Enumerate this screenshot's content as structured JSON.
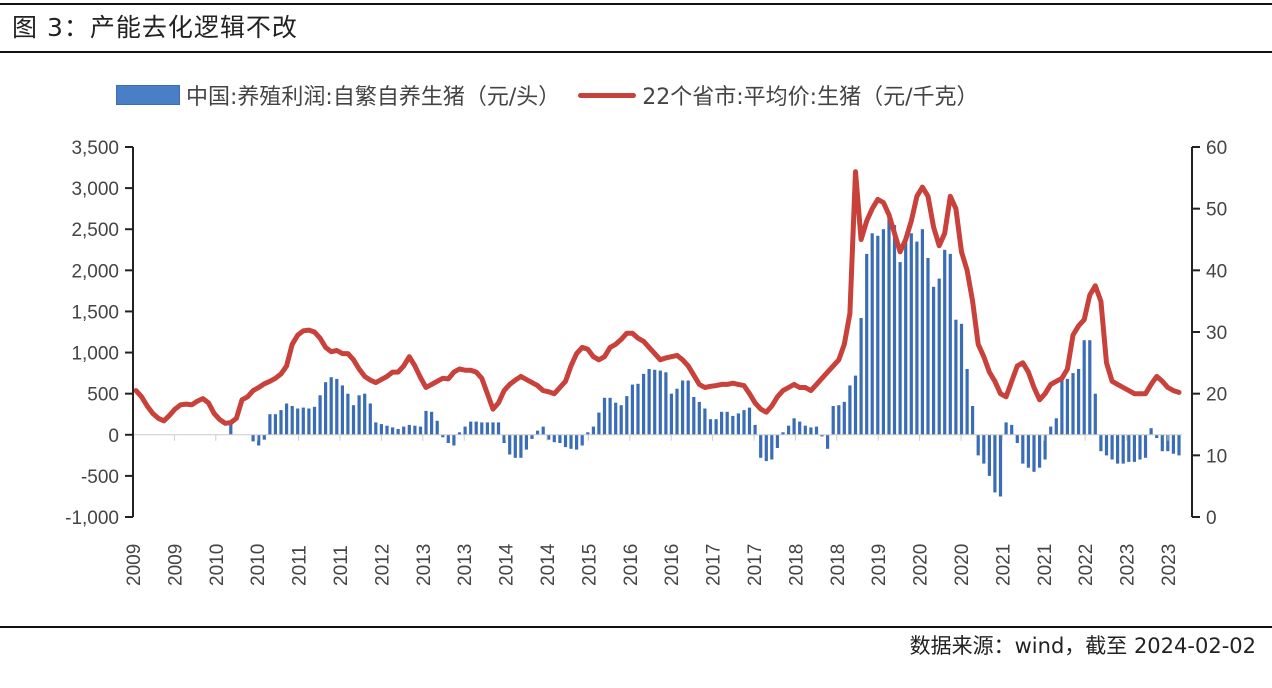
{
  "title": "图 3：产能去化逻辑不改",
  "source": "数据来源：wind，截至 2024-02-02",
  "colors": {
    "bar": "#3a6db5",
    "line": "#c8413a"
  },
  "chart_data": {
    "type": "bar+line",
    "title": "图 3：产能去化逻辑不改",
    "legend_position": "top",
    "series": [
      {
        "name": "中国:养殖利润:自繁自养生猪（元/头）",
        "type": "bar",
        "axis": "left"
      },
      {
        "name": "22个省市:平均价:生猪（元/千克）",
        "type": "line",
        "axis": "right"
      }
    ],
    "left_axis": {
      "ylim": [
        -1000,
        3500
      ],
      "ticks": [
        "3,500",
        "3,000",
        "2,500",
        "2,000",
        "1,500",
        "1,000",
        "500",
        "0",
        "-500",
        "-1,000"
      ]
    },
    "right_axis": {
      "ylim": [
        0,
        60
      ],
      "ticks": [
        "60",
        "50",
        "40",
        "30",
        "20",
        "10",
        "0"
      ]
    },
    "x_tick_labels": [
      "2009",
      "2009",
      "2010",
      "2010",
      "2011",
      "2011",
      "2012",
      "2013",
      "2013",
      "2014",
      "2014",
      "2015",
      "2016",
      "2016",
      "2017",
      "2017",
      "2018",
      "2018",
      "2019",
      "2020",
      "2020",
      "2021",
      "2021",
      "2022",
      "2023",
      "2023"
    ],
    "x_start": "2009-01",
    "x_end": "2024-01",
    "frequency": "monthly",
    "profit": [
      0,
      0,
      0,
      0,
      0,
      0,
      0,
      0,
      0,
      0,
      0,
      0,
      0,
      0,
      0,
      0,
      0,
      150,
      0,
      0,
      0,
      -80,
      -130,
      -60,
      250,
      250,
      300,
      380,
      350,
      320,
      330,
      320,
      340,
      480,
      640,
      700,
      680,
      600,
      500,
      360,
      480,
      500,
      380,
      150,
      130,
      110,
      90,
      70,
      100,
      120,
      110,
      100,
      290,
      280,
      170,
      -30,
      -100,
      -130,
      30,
      100,
      160,
      160,
      150,
      150,
      150,
      150,
      -100,
      -240,
      -280,
      -280,
      -180,
      -50,
      50,
      100,
      -60,
      -90,
      -100,
      -150,
      -170,
      -180,
      -130,
      30,
      100,
      270,
      450,
      450,
      390,
      360,
      470,
      610,
      620,
      740,
      800,
      790,
      780,
      760,
      500,
      560,
      660,
      660,
      460,
      400,
      320,
      190,
      190,
      280,
      280,
      230,
      260,
      300,
      330,
      120,
      -280,
      -320,
      -300,
      -160,
      30,
      110,
      200,
      160,
      110,
      90,
      100,
      -20,
      -170,
      350,
      360,
      400,
      600,
      720,
      1420,
      2200,
      2450,
      2420,
      2500,
      2700,
      2550,
      2100,
      2350,
      2450,
      2350,
      2500,
      2150,
      1800,
      1900,
      2250,
      2200,
      1400,
      1350,
      800,
      350,
      -250,
      -350,
      -500,
      -700,
      -750,
      150,
      120,
      -100,
      -350,
      -400,
      -450,
      -400,
      -300,
      100,
      200,
      700,
      680,
      750,
      800,
      1150,
      1150,
      500,
      -200,
      -250,
      -300,
      -350,
      -350,
      -330,
      -330,
      -300,
      -280,
      80,
      -40,
      -200,
      -200,
      -230,
      -250
    ],
    "price": [
      20.5,
      19.5,
      18,
      16.8,
      16,
      15.6,
      16.5,
      17.5,
      18.2,
      18.3,
      18.2,
      18.8,
      19.2,
      18.5,
      16.8,
      15.8,
      15.2,
      15.3,
      16,
      19,
      19.5,
      20.5,
      21,
      21.6,
      22,
      22.5,
      23.2,
      24.5,
      28,
      29.5,
      30.2,
      30.3,
      30,
      29,
      27.5,
      26.8,
      27,
      26.5,
      26.5,
      25.5,
      24,
      22.8,
      22.2,
      21.8,
      22.3,
      22.8,
      23.5,
      23.5,
      24.5,
      26,
      24.5,
      22.6,
      21,
      21.5,
      22,
      22.5,
      22.4,
      23.5,
      24,
      23.8,
      23.8,
      23.5,
      22.5,
      20,
      17.5,
      18.5,
      20.5,
      21.5,
      22.2,
      22.8,
      22.3,
      21.8,
      21.3,
      20.5,
      20.3,
      20,
      21,
      22,
      24.5,
      26.5,
      27.5,
      27.2,
      26,
      25.5,
      26,
      27.5,
      28,
      28.8,
      29.8,
      29.8,
      29,
      28.5,
      27.5,
      26.5,
      25.5,
      25.8,
      26,
      26.2,
      25.5,
      24.5,
      23,
      21.5,
      21,
      21.2,
      21.3,
      21.5,
      21.5,
      21.7,
      21.5,
      21.3,
      20,
      18.5,
      17.5,
      17,
      18,
      19.5,
      20.5,
      21,
      21.5,
      21,
      21,
      20.5,
      21.5,
      22.5,
      23.5,
      24.5,
      25.5,
      28,
      33,
      56,
      45,
      48,
      50,
      51.5,
      51,
      49,
      46,
      43,
      45,
      48,
      52,
      53.5,
      52,
      47,
      44,
      46,
      52,
      50,
      43,
      40,
      35,
      28,
      26,
      23.5,
      22,
      20,
      19.5,
      22,
      24.5,
      25,
      23.5,
      21,
      19,
      20,
      21.5,
      22,
      22.5,
      24,
      29.5,
      31,
      32,
      36,
      37.5,
      35,
      25,
      22,
      21.5,
      21,
      20.5,
      20,
      20,
      20,
      21.5,
      22.8,
      22,
      21,
      20.5,
      20.2
    ]
  }
}
